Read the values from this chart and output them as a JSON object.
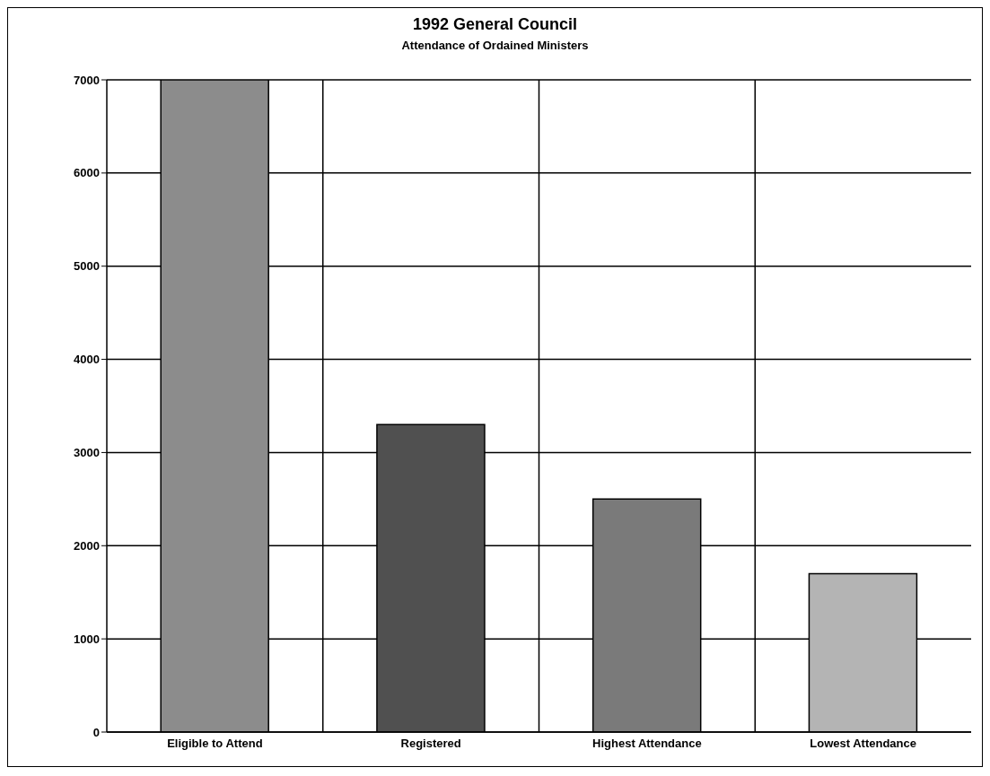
{
  "chart_data": {
    "type": "bar",
    "title": "1992 General Council",
    "subtitle": "Attendance of Ordained Ministers",
    "categories": [
      "Eligible to Attend",
      "Registered",
      "Highest Attendance",
      "Lowest Attendance"
    ],
    "values": [
      7000,
      3300,
      2500,
      1700
    ],
    "colors": [
      "#8c8c8c",
      "#505050",
      "#7a7a7a",
      "#b4b4b4"
    ],
    "ylim": [
      0,
      7000
    ],
    "yticks": [
      0,
      1000,
      2000,
      3000,
      4000,
      5000,
      6000,
      7000
    ],
    "grid": true,
    "legend": false
  }
}
